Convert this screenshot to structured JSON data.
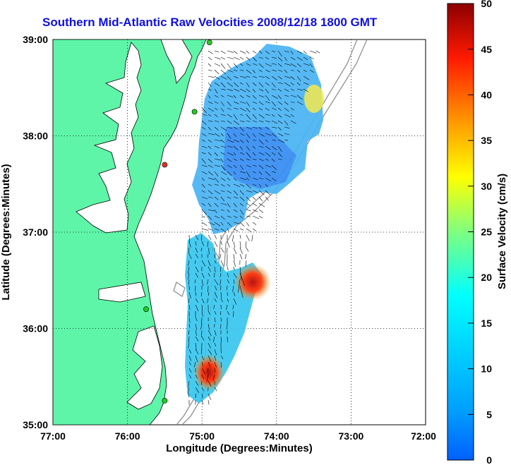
{
  "title": "Southern Mid-Atlantic Raw Velocities 2008/12/18 1800 GMT",
  "map": {
    "xlabel": "Longitude (Degrees:Minutes)",
    "ylabel": "Latitude (Degrees:Minutes)",
    "x_ticks": [
      "77:00",
      "76:00",
      "75:00",
      "74:00",
      "73:00",
      "72:00"
    ],
    "y_ticks": [
      "39:00",
      "38:00",
      "37:00",
      "36:00",
      "35:00"
    ],
    "lon_range": [
      -77,
      -72
    ],
    "lat_range": [
      35,
      39
    ],
    "grid": "dotted",
    "land_color": "#5ef5a8",
    "coast_color": "#000000"
  },
  "colorbar": {
    "label": "Surface Velocity (cm/s)",
    "ticks": [
      "50",
      "45",
      "40",
      "35",
      "30",
      "25",
      "20",
      "15",
      "10",
      "5",
      "0"
    ],
    "min": 0,
    "max": 50,
    "colormap": "jet"
  },
  "stations": [
    {
      "lon": -74.9,
      "lat": 38.97,
      "color": "#22cc22"
    },
    {
      "lon": -75.1,
      "lat": 38.25,
      "color": "#22cc22"
    },
    {
      "lon": -75.5,
      "lat": 37.7,
      "color": "#e03020"
    },
    {
      "lon": -75.75,
      "lat": 36.2,
      "color": "#22cc22"
    },
    {
      "lon": -75.5,
      "lat": 35.25,
      "color": "#22cc22"
    }
  ]
}
